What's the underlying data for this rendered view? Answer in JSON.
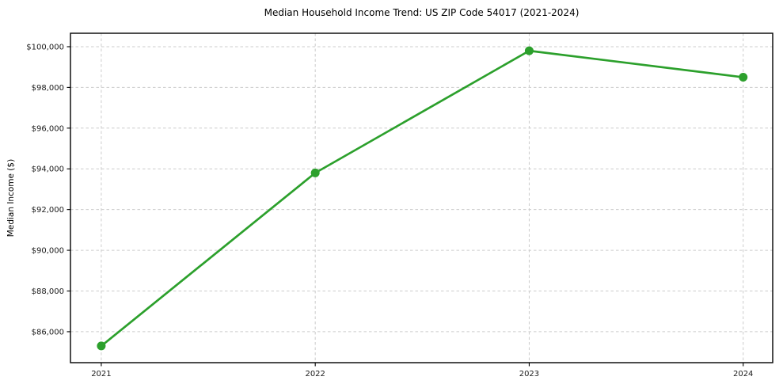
{
  "figure": {
    "title": "Median Household Income Trend: US ZIP Code 54017 (2021-2024)",
    "ylabel": "Median Income ($)",
    "background": "#ffffff"
  },
  "chart_data": {
    "type": "line",
    "title": "Median Household Income Trend: US ZIP Code 54017 (2021-2024)",
    "xlabel": "",
    "ylabel": "Median Income ($)",
    "x": [
      2021,
      2022,
      2023,
      2024
    ],
    "categories": [
      "2021",
      "2022",
      "2023",
      "2024"
    ],
    "series": [
      {
        "name": "Median Household Income",
        "values": [
          85300,
          93800,
          99800,
          98500
        ],
        "color": "#2ca02c",
        "marker": "circle"
      }
    ],
    "yticks": {
      "values": [
        86000,
        88000,
        90000,
        92000,
        94000,
        96000,
        98000,
        100000
      ],
      "labels": [
        "$86,000",
        "$88,000",
        "$90,000",
        "$92,000",
        "$94,000",
        "$96,000",
        "$98,000",
        "$100,000"
      ]
    },
    "xlim": [
      2020.856,
      2024.138
    ],
    "ylim": [
      84480,
      100660
    ],
    "grid": true,
    "grid_style": "dashed",
    "legend": "none",
    "colors": {
      "line": "#2ca02c",
      "grid": "#cccccc",
      "axis_border": "#000000",
      "tick": "#000000",
      "text": "#1a1a1a"
    }
  }
}
